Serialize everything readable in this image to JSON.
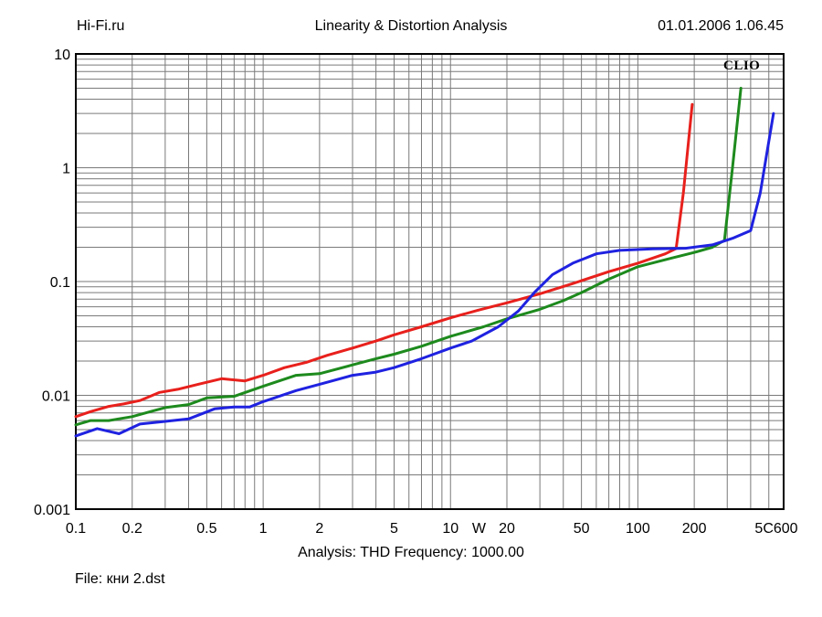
{
  "header": {
    "left": "Hi-Fi.ru",
    "title": "Linearity & Distortion Analysis",
    "datetime": "01.01.2006 1.06.45"
  },
  "footer": {
    "analysis": "Analysis: THD   Frequency: 1000.00",
    "file": "File: кни 2.dst"
  },
  "watermark": "CLIO",
  "chart_data": {
    "type": "line",
    "xscale": "log",
    "yscale": "log",
    "xlim": [
      0.1,
      600
    ],
    "ylim": [
      0.001,
      10
    ],
    "grid": true,
    "xunit_label": "W",
    "x_tick_labels": [
      {
        "v": 0.1,
        "t": "0.1"
      },
      {
        "v": 0.2,
        "t": "0.2"
      },
      {
        "v": 0.5,
        "t": "0.5"
      },
      {
        "v": 1,
        "t": "1"
      },
      {
        "v": 2,
        "t": "2"
      },
      {
        "v": 5,
        "t": "5"
      },
      {
        "v": 10,
        "t": "10"
      },
      {
        "v": 20,
        "t": "20"
      },
      {
        "v": 50,
        "t": "50"
      },
      {
        "v": 100,
        "t": "100"
      },
      {
        "v": 200,
        "t": "200"
      },
      {
        "v": 600,
        "t": "5C600"
      }
    ],
    "y_tick_labels": [
      {
        "v": 10,
        "t": "10"
      },
      {
        "v": 1,
        "t": "1"
      },
      {
        "v": 0.1,
        "t": "0.1"
      },
      {
        "v": 0.01,
        "t": "0.01"
      },
      {
        "v": 0.001,
        "t": "0.001"
      }
    ],
    "series": [
      {
        "color": "#e8201c",
        "points": [
          [
            0.1,
            0.0065
          ],
          [
            0.12,
            0.0072
          ],
          [
            0.15,
            0.008
          ],
          [
            0.18,
            0.0084
          ],
          [
            0.22,
            0.009
          ],
          [
            0.28,
            0.0106
          ],
          [
            0.35,
            0.0113
          ],
          [
            0.45,
            0.0125
          ],
          [
            0.6,
            0.014
          ],
          [
            0.8,
            0.0134
          ],
          [
            1.0,
            0.015
          ],
          [
            1.3,
            0.0175
          ],
          [
            1.7,
            0.0195
          ],
          [
            2.2,
            0.0225
          ],
          [
            3.0,
            0.026
          ],
          [
            4.0,
            0.03
          ],
          [
            5.0,
            0.034
          ],
          [
            7.0,
            0.04
          ],
          [
            10,
            0.048
          ],
          [
            14,
            0.056
          ],
          [
            20,
            0.065
          ],
          [
            30,
            0.078
          ],
          [
            45,
            0.096
          ],
          [
            70,
            0.122
          ],
          [
            100,
            0.145
          ],
          [
            140,
            0.175
          ],
          [
            160,
            0.195
          ],
          [
            175,
            0.6
          ],
          [
            195,
            3.6
          ]
        ]
      },
      {
        "color": "#1d8a1d",
        "points": [
          [
            0.1,
            0.0055
          ],
          [
            0.12,
            0.006
          ],
          [
            0.15,
            0.006
          ],
          [
            0.2,
            0.0065
          ],
          [
            0.25,
            0.0072
          ],
          [
            0.3,
            0.0078
          ],
          [
            0.4,
            0.0083
          ],
          [
            0.5,
            0.0095
          ],
          [
            0.7,
            0.0098
          ],
          [
            1.0,
            0.012
          ],
          [
            1.5,
            0.015
          ],
          [
            2.0,
            0.0155
          ],
          [
            3.0,
            0.0185
          ],
          [
            4.0,
            0.021
          ],
          [
            5.0,
            0.023
          ],
          [
            7.0,
            0.027
          ],
          [
            10,
            0.033
          ],
          [
            15,
            0.04
          ],
          [
            20,
            0.047
          ],
          [
            30,
            0.057
          ],
          [
            40,
            0.068
          ],
          [
            50,
            0.08
          ],
          [
            70,
            0.105
          ],
          [
            100,
            0.135
          ],
          [
            150,
            0.16
          ],
          [
            200,
            0.18
          ],
          [
            250,
            0.2
          ],
          [
            290,
            0.23
          ],
          [
            320,
            1.0
          ],
          [
            355,
            5.0
          ]
        ]
      },
      {
        "color": "#1f22e0",
        "points": [
          [
            0.1,
            0.0044
          ],
          [
            0.13,
            0.0051
          ],
          [
            0.17,
            0.0046
          ],
          [
            0.22,
            0.0056
          ],
          [
            0.3,
            0.0059
          ],
          [
            0.4,
            0.0062
          ],
          [
            0.55,
            0.0076
          ],
          [
            0.7,
            0.0079
          ],
          [
            0.85,
            0.0079
          ],
          [
            1.0,
            0.0088
          ],
          [
            1.5,
            0.011
          ],
          [
            2.0,
            0.0125
          ],
          [
            3.0,
            0.015
          ],
          [
            4.0,
            0.016
          ],
          [
            5.0,
            0.0175
          ],
          [
            7.0,
            0.021
          ],
          [
            10,
            0.026
          ],
          [
            13,
            0.03
          ],
          [
            18,
            0.04
          ],
          [
            23,
            0.055
          ],
          [
            28,
            0.08
          ],
          [
            35,
            0.115
          ],
          [
            45,
            0.145
          ],
          [
            60,
            0.175
          ],
          [
            80,
            0.188
          ],
          [
            120,
            0.194
          ],
          [
            180,
            0.196
          ],
          [
            250,
            0.21
          ],
          [
            320,
            0.24
          ],
          [
            400,
            0.28
          ],
          [
            450,
            0.6
          ],
          [
            490,
            1.4
          ],
          [
            530,
            3.0
          ]
        ]
      }
    ]
  }
}
